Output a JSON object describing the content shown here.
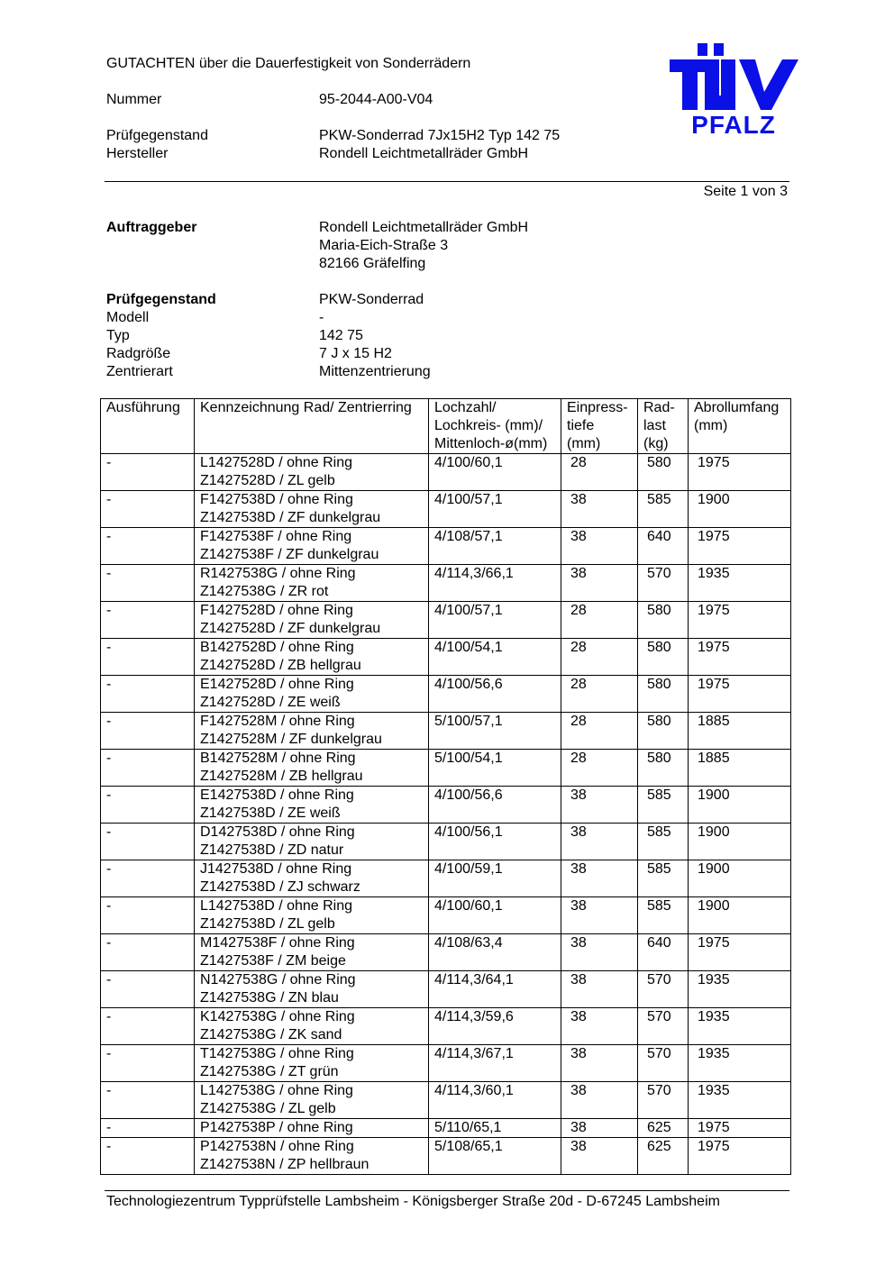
{
  "header": {
    "title": "GUTACHTEN über die Dauerfestigkeit von Sonderrädern",
    "fields": [
      {
        "label": "Nummer",
        "value": "95-2044-A00-V04"
      },
      {
        "label": "Prüfgegenstand",
        "value": "PKW-Sonderrad 7Jx15H2 Typ 142 75"
      },
      {
        "label": "Hersteller",
        "value": "Rondell Leichtmetallräder GmbH"
      }
    ],
    "page": "Seite 1 von 3",
    "logo": {
      "text_top": "TÜV",
      "text_bottom": "PFALZ",
      "color": "#0a10e6"
    }
  },
  "client": {
    "label": "Auftraggeber",
    "lines": [
      "Rondell Leichtmetallräder GmbH",
      "Maria-Eich-Straße 3",
      "82166 Gräfelfing"
    ]
  },
  "subject": {
    "label": "Prüfgegenstand",
    "value": "PKW-Sonderrad",
    "fields": [
      {
        "label": "Modell",
        "value": "-"
      },
      {
        "label": "Typ",
        "value": "142 75"
      },
      {
        "label": "Radgröße",
        "value": "7 J  x 15 H2"
      },
      {
        "label": "Zentrierart",
        "value": "Mittenzentrierung"
      }
    ]
  },
  "table": {
    "headers": [
      [
        "Ausführung"
      ],
      [
        "Kennzeichnung Rad/ Zentrierring"
      ],
      [
        "Lochzahl/",
        "Lochkreis- (mm)/",
        "Mittenloch-ø(mm)"
      ],
      [
        "Einpress-",
        "tiefe",
        "(mm)"
      ],
      [
        "Rad-",
        "last",
        "(kg)"
      ],
      [
        "Abrollumfang",
        "(mm)"
      ]
    ],
    "rows": [
      {
        "a": "-",
        "k1": "L1427528D / ohne Ring",
        "k2": "Z1427528D / ZL gelb",
        "l": "4/100/60,1",
        "e": "28",
        "r": "580",
        "u": "1975"
      },
      {
        "a": "-",
        "k1": "F1427538D / ohne Ring",
        "k2": "Z1427538D / ZF dunkelgrau",
        "l": "4/100/57,1",
        "e": "38",
        "r": "585",
        "u": "1900"
      },
      {
        "a": "-",
        "k1": "F1427538F / ohne Ring",
        "k2": "Z1427538F / ZF dunkelgrau",
        "l": "4/108/57,1",
        "e": "38",
        "r": "640",
        "u": "1975"
      },
      {
        "a": "-",
        "k1": "R1427538G / ohne Ring",
        "k2": "Z1427538G / ZR rot",
        "l": "4/114,3/66,1",
        "e": "38",
        "r": "570",
        "u": "1935"
      },
      {
        "a": "-",
        "k1": "F1427528D / ohne Ring",
        "k2": "Z1427528D / ZF dunkelgrau",
        "l": "4/100/57,1",
        "e": "28",
        "r": "580",
        "u": "1975"
      },
      {
        "a": "-",
        "k1": "B1427528D / ohne Ring",
        "k2": "Z1427528D / ZB hellgrau",
        "l": "4/100/54,1",
        "e": "28",
        "r": "580",
        "u": "1975"
      },
      {
        "a": "-",
        "k1": "E1427528D / ohne Ring",
        "k2": "Z1427528D / ZE weiß",
        "l": "4/100/56,6",
        "e": "28",
        "r": "580",
        "u": "1975"
      },
      {
        "a": "-",
        "k1": "F1427528M / ohne Ring",
        "k2": "Z1427528M / ZF dunkelgrau",
        "l": "5/100/57,1",
        "e": "28",
        "r": "580",
        "u": "1885"
      },
      {
        "a": "-",
        "k1": "B1427528M / ohne Ring",
        "k2": "Z1427528M / ZB hellgrau",
        "l": "5/100/54,1",
        "e": "28",
        "r": "580",
        "u": "1885"
      },
      {
        "a": "-",
        "k1": "E1427538D / ohne Ring",
        "k2": "Z1427538D / ZE weiß",
        "l": "4/100/56,6",
        "e": "38",
        "r": "585",
        "u": "1900"
      },
      {
        "a": "-",
        "k1": "D1427538D / ohne Ring",
        "k2": "Z1427538D / ZD natur",
        "l": "4/100/56,1",
        "e": "38",
        "r": "585",
        "u": "1900"
      },
      {
        "a": "-",
        "k1": "J1427538D / ohne Ring",
        "k2": "Z1427538D / ZJ schwarz",
        "l": "4/100/59,1",
        "e": "38",
        "r": "585",
        "u": "1900"
      },
      {
        "a": "-",
        "k1": "L1427538D / ohne Ring",
        "k2": "Z1427538D / ZL gelb",
        "l": "4/100/60,1",
        "e": "38",
        "r": "585",
        "u": "1900"
      },
      {
        "a": "-",
        "k1": "M1427538F / ohne Ring",
        "k2": "Z1427538F / ZM beige",
        "l": "4/108/63,4",
        "e": "38",
        "r": "640",
        "u": "1975"
      },
      {
        "a": "-",
        "k1": "N1427538G / ohne Ring",
        "k2": "Z1427538G / ZN blau",
        "l": "4/114,3/64,1",
        "e": "38",
        "r": "570",
        "u": "1935"
      },
      {
        "a": "-",
        "k1": "K1427538G / ohne Ring",
        "k2": "Z1427538G / ZK sand",
        "l": "4/114,3/59,6",
        "e": "38",
        "r": "570",
        "u": "1935"
      },
      {
        "a": "-",
        "k1": "T1427538G / ohne Ring",
        "k2": "Z1427538G / ZT grün",
        "l": "4/114,3/67,1",
        "e": "38",
        "r": "570",
        "u": "1935"
      },
      {
        "a": "-",
        "k1": "L1427538G / ohne Ring",
        "k2": "Z1427538G / ZL gelb",
        "l": "4/114,3/60,1",
        "e": "38",
        "r": "570",
        "u": "1935"
      },
      {
        "a": "-",
        "k1": "P1427538P / ohne Ring",
        "k2": "",
        "l": "5/110/65,1",
        "e": "38",
        "r": "625",
        "u": "1975"
      },
      {
        "a": "-",
        "k1": "P1427538N / ohne Ring",
        "k2": "Z1427538N / ZP hellbraun",
        "l": "5/108/65,1",
        "e": "38",
        "r": "625",
        "u": "1975"
      }
    ]
  },
  "footer": {
    "text": "Technologiezentrum Typprüfstelle Lambsheim - Königsberger Straße 20d - D-67245 Lambsheim"
  }
}
